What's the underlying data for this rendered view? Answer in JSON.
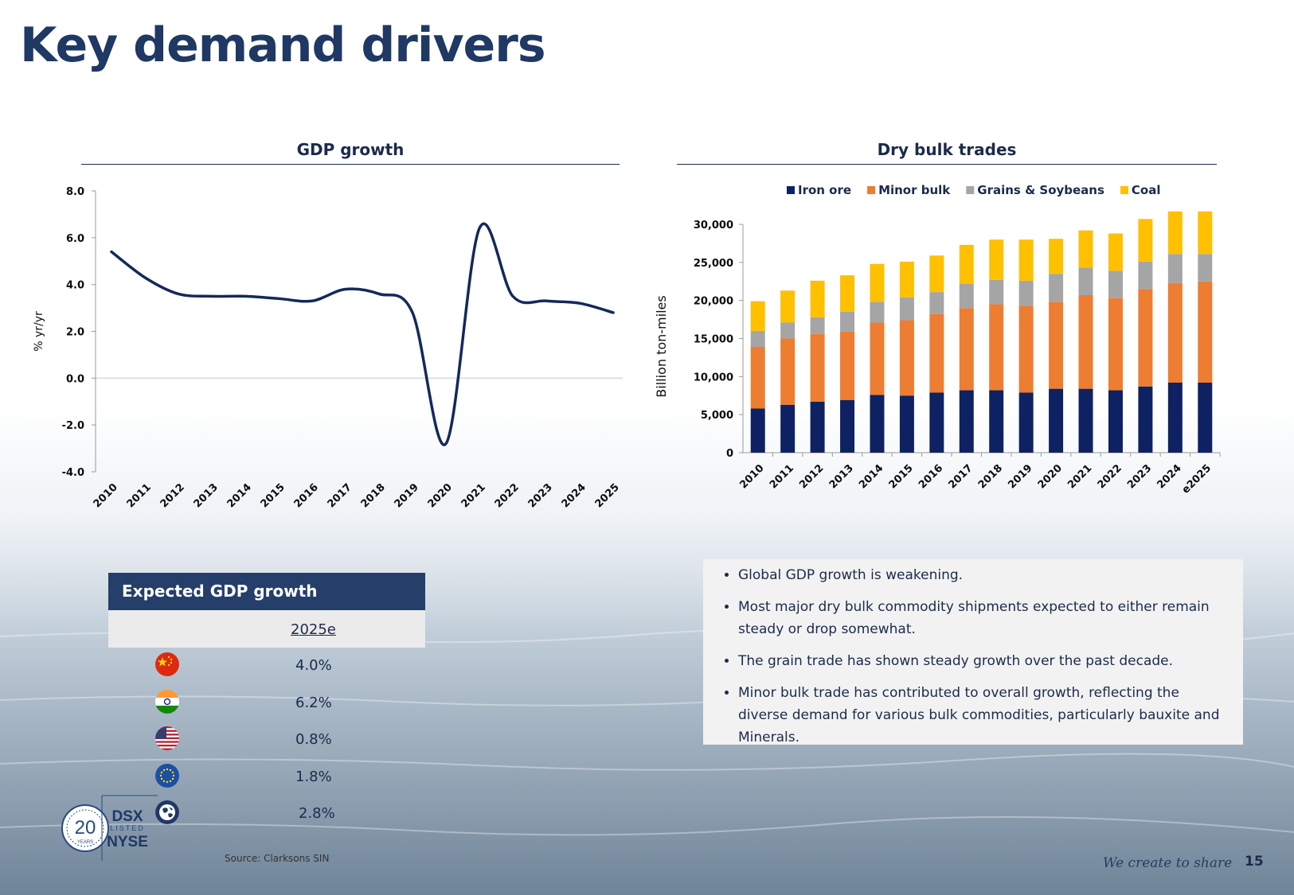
{
  "title": "Key demand drivers",
  "gdp_panel": {
    "title": "GDP growth"
  },
  "bulk_panel": {
    "title": "Dry bulk trades"
  },
  "chart_data": [
    {
      "type": "line",
      "title": "GDP growth",
      "ylabel": "% yr/yr",
      "xlabel": "",
      "ylim": [
        -4.0,
        8.0
      ],
      "yticks": [
        8.0,
        6.0,
        4.0,
        2.0,
        0.0,
        -2.0,
        -4.0
      ],
      "ytick_labels": [
        "8.0",
        "6.0",
        "4.0",
        "2.0",
        "0.0",
        "-2.0",
        "-4.0"
      ],
      "x": [
        "2010",
        "2011",
        "2012",
        "2013",
        "2014",
        "2015",
        "2016",
        "2017",
        "2018",
        "2019",
        "2020",
        "2021",
        "2022",
        "2023",
        "2024",
        "2025"
      ],
      "series": [
        {
          "name": "GDP growth",
          "values": [
            5.4,
            4.3,
            3.6,
            3.5,
            3.5,
            3.4,
            3.3,
            3.8,
            3.6,
            2.8,
            -2.8,
            6.4,
            3.5,
            3.3,
            3.2,
            2.8
          ]
        }
      ],
      "line_color": "#14295a"
    },
    {
      "type": "bar",
      "stacked": true,
      "title": "Dry bulk trades",
      "ylabel": "Billion ton-miles",
      "xlabel": "",
      "ylim": [
        0,
        30000
      ],
      "yticks": [
        0,
        5000,
        10000,
        15000,
        20000,
        25000,
        30000
      ],
      "ytick_labels": [
        "0",
        "5,000",
        "10,000",
        "15,000",
        "20,000",
        "25,000",
        "30,000"
      ],
      "categories": [
        "2010",
        "2011",
        "2012",
        "2013",
        "2014",
        "2015",
        "2016",
        "2017",
        "2018",
        "2019",
        "2020",
        "2021",
        "2022",
        "2023",
        "2024",
        "e2025"
      ],
      "legend_position": "top",
      "series": [
        {
          "name": "Iron ore",
          "color": "#0e2263",
          "values": [
            5800,
            6300,
            6700,
            6900,
            7600,
            7500,
            7900,
            8200,
            8200,
            7900,
            8400,
            8400,
            8200,
            8700,
            9200,
            9200
          ]
        },
        {
          "name": "Minor bulk",
          "color": "#ed7d31",
          "values": [
            8100,
            8700,
            8900,
            9000,
            9500,
            9900,
            10300,
            10800,
            11300,
            11400,
            11400,
            12300,
            12100,
            12800,
            13100,
            13300
          ]
        },
        {
          "name": "Grains & Soybeans",
          "color": "#a5a5a5",
          "values": [
            2100,
            2100,
            2200,
            2600,
            2700,
            3000,
            2900,
            3200,
            3200,
            3300,
            3700,
            3600,
            3600,
            3600,
            3800,
            3600
          ]
        },
        {
          "name": "Coal",
          "color": "#ffc000",
          "values": [
            3900,
            4200,
            4800,
            4800,
            5000,
            4700,
            4800,
            5100,
            5300,
            5400,
            4600,
            4900,
            4900,
            5600,
            5600,
            5600
          ]
        }
      ]
    }
  ],
  "gdp_table": {
    "header": "Expected GDP growth",
    "column": "2025e",
    "rows": [
      {
        "flag": "china-flag-icon",
        "value": "4.0%"
      },
      {
        "flag": "india-flag-icon",
        "value": "6.2%"
      },
      {
        "flag": "usa-flag-icon",
        "value": "0.8%"
      },
      {
        "flag": "eu-flag-icon",
        "value": "1.8%"
      },
      {
        "flag": "globe-icon",
        "value": "2.8%"
      }
    ]
  },
  "bullets": [
    "Global GDP growth is weakening.",
    "Most major dry bulk commodity shipments expected to either remain steady or drop somewhat.",
    "The grain trade has shown steady growth over the past decade.",
    "Minor bulk trade has contributed to overall growth, reflecting the diverse demand for various bulk commodities, particularly bauxite and Minerals."
  ],
  "logo": {
    "anniversary": "20",
    "years": "YEARS",
    "ticker": "DSX",
    "listed": "LISTED",
    "exchange": "NYSE"
  },
  "source": "Source: Clarksons SIN",
  "tagline": "We create to share",
  "page_number": "15"
}
